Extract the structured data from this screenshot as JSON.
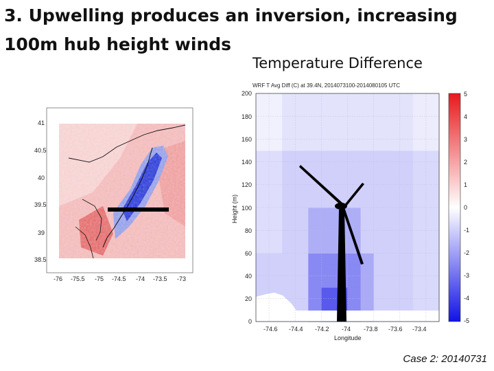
{
  "slide": {
    "title_line1": "3. Upwelling produces an inversion, increasing",
    "title_line2": "100m hub height winds",
    "panel_title": "Temperature Difference",
    "caption": "Case 2: 20140731"
  },
  "colors": {
    "warm": "#e23a3a",
    "neutral": "#ffffff",
    "cool": "#1f2be0",
    "turbine": "#000000",
    "transect": "#000000"
  },
  "chart_data": [
    {
      "type": "heatmap",
      "title": "",
      "xlabel": "",
      "ylabel": "",
      "x_ticks": [
        "-76",
        "-75.5",
        "-75",
        "-74.5",
        "-74",
        "-73.5",
        "-73"
      ],
      "y_ticks": [
        "41",
        "40.5",
        "40",
        "39.5",
        "39",
        "38.5"
      ],
      "xlim": [
        -76,
        -73
      ],
      "ylim": [
        38.5,
        41
      ],
      "transect": {
        "lat": 39.4,
        "lon_start": -74.6,
        "lon_end": -73.35
      },
      "pattern": "warm (red) over land and offshore, cool (blue) coastal upwelling band off New Jersey"
    },
    {
      "type": "heatmap",
      "title": "WRF T Avg Diff (C) at 39.4N, 2014073100-2014080105 UTC",
      "xlabel": "Longitude",
      "ylabel": "Height (m)",
      "x_ticks": [
        "-74.6",
        "-74.4",
        "-74.2",
        "-74",
        "-73.8",
        "-73.6",
        "-73.4"
      ],
      "y_ticks": [
        "0",
        "20",
        "40",
        "60",
        "80",
        "100",
        "120",
        "140",
        "160",
        "180",
        "200"
      ],
      "xlim": [
        -74.7,
        -73.3
      ],
      "ylim": [
        0,
        200
      ],
      "colorbar": {
        "ticks": [
          "5",
          "4",
          "3",
          "2",
          "1",
          "0",
          "-1",
          "-2",
          "-3",
          "-4",
          "-5"
        ],
        "range": [
          -5,
          5
        ]
      },
      "columns": [
        -74.65,
        -74.55,
        -74.45,
        -74.35,
        -74.25,
        -74.15,
        -74.05,
        -73.95,
        -73.85,
        -73.75,
        -73.65,
        -73.55,
        -73.45,
        -73.35
      ],
      "rows": [
        5,
        15,
        25,
        35,
        45,
        55,
        65,
        75,
        85,
        95,
        105,
        115,
        125,
        135,
        145,
        155,
        165,
        175,
        185,
        195
      ],
      "values_sample": {
        "surface_near_shore": -3.5,
        "upper_offshore": -0.6,
        "mid_column": -1.5
      }
    }
  ]
}
